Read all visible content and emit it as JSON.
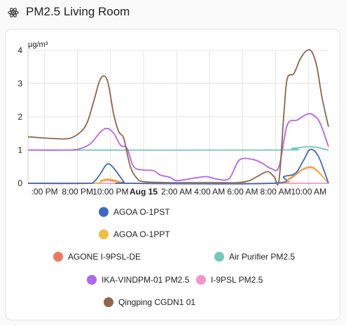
{
  "header": {
    "title": "PM2.5 Living Room",
    "icon": "molecule-icon"
  },
  "chart_data": {
    "type": "line",
    "ylabel": "µg/m³",
    "ylim": [
      0,
      4
    ],
    "yticks": [
      "0",
      "1",
      "2",
      "3",
      "4"
    ],
    "grid": true,
    "legend_position": "bottom",
    "x_tick_labels": [
      ":00 PM",
      "8:00 PM",
      "10:00 PM",
      "Aug 15",
      "2:00 AM",
      "4:00 AM",
      "6:00 AM",
      "8:00 AM",
      "10:00 AM"
    ],
    "x_tick_hours": [
      -6,
      -4,
      -2,
      0,
      2,
      4,
      6,
      8,
      10
    ],
    "series": [
      {
        "name": "AGOA O-1PST",
        "color": "#3f67c7",
        "x": [
          -7,
          -3.5,
          -3,
          -2.6,
          -2.2,
          -1.8,
          -1.2,
          -1,
          7.8,
          8.5,
          9.2,
          9.7,
          10.1,
          10.6,
          11.2
        ],
        "y": [
          0,
          0,
          0.05,
          0.3,
          0.58,
          0.45,
          0.05,
          0,
          0,
          0.2,
          0.3,
          0.7,
          1.02,
          0.8,
          0
        ]
      },
      {
        "name": "AGOA O-1PPT",
        "color": "#f2bd42",
        "x": [
          -7,
          -3,
          -2.6,
          -2.2,
          -1.8,
          -1.2,
          -1,
          7.8,
          8.8,
          9.6,
          10.1,
          10.5,
          11.2
        ],
        "y": [
          0,
          0,
          0.08,
          0.13,
          0.1,
          0.02,
          0,
          0,
          0.15,
          0.42,
          0.5,
          0.4,
          0
        ]
      },
      {
        "name": "AGONE I-9PSL-DE",
        "color": "#f0775d",
        "x": [
          -7,
          -3,
          -2.6,
          -2.2,
          -1.8,
          -1.2,
          -1,
          7.8,
          8.8,
          9.6,
          10.1,
          10.5,
          11.2
        ],
        "y": [
          0,
          0,
          0.06,
          0.1,
          0.07,
          0.02,
          0,
          0,
          0.12,
          0.4,
          0.48,
          0.38,
          0
        ]
      },
      {
        "name": "Air Purifier PM2.5",
        "color": "#72c9b8",
        "x": [
          -7,
          8,
          9,
          10,
          10.5,
          11.2
        ],
        "y": [
          1,
          1,
          1.05,
          1.1,
          1.08,
          1.0
        ]
      },
      {
        "name": "IKA-VINDPM-01 PM2.5",
        "color": "#b065ea",
        "x": [
          -7,
          -4.5,
          -3.8,
          -3.2,
          -2.6,
          -2.2,
          -1.8,
          -1.4,
          -1,
          -0.6,
          0,
          0.6,
          1,
          1.6,
          2,
          3,
          3.8,
          4.5,
          5.2,
          5.8,
          6.6,
          7.2,
          7.7,
          8.2,
          8.7,
          9.3,
          9.9,
          10.3,
          10.7,
          11.2
        ],
        "y": [
          1,
          1,
          1.05,
          1.2,
          1.55,
          1.65,
          1.5,
          1.15,
          1.05,
          0.5,
          0.4,
          0.38,
          0.25,
          0.18,
          0.08,
          0.15,
          0.2,
          0.12,
          0.15,
          0.7,
          0.72,
          0.6,
          0.45,
          0.5,
          1.75,
          1.9,
          2.08,
          2.05,
          1.8,
          1.1
        ]
      },
      {
        "name": "I-9PSL PM2.5",
        "color": "#f595c8",
        "x": [
          -7,
          11.2
        ],
        "y": [
          0,
          0
        ]
      },
      {
        "name": "Qingping CGDN1 01",
        "color": "#916446",
        "x": [
          -7,
          -5.6,
          -4.5,
          -3.8,
          -3.4,
          -3,
          -2.6,
          -2.2,
          -1.8,
          -1.5,
          -1.2,
          -0.8,
          -0.4,
          0,
          1.4,
          2.5,
          3.8,
          4.8,
          5.7,
          6.4,
          6.8,
          7.5,
          7.9,
          8.2,
          8.5,
          8.7,
          9.1,
          9.5,
          9.9,
          10.2,
          10.5,
          10.8,
          11.2
        ],
        "y": [
          1.4,
          1.35,
          1.35,
          1.55,
          1.85,
          2.5,
          3.15,
          3.1,
          2.05,
          1.55,
          1.35,
          0.5,
          0.15,
          0.05,
          0.02,
          0.02,
          0.02,
          0.02,
          0.02,
          0.08,
          0.18,
          0.35,
          0.2,
          0.08,
          2.1,
          3.15,
          3.3,
          3.75,
          4.0,
          3.95,
          3.5,
          2.6,
          1.7
        ]
      }
    ]
  }
}
